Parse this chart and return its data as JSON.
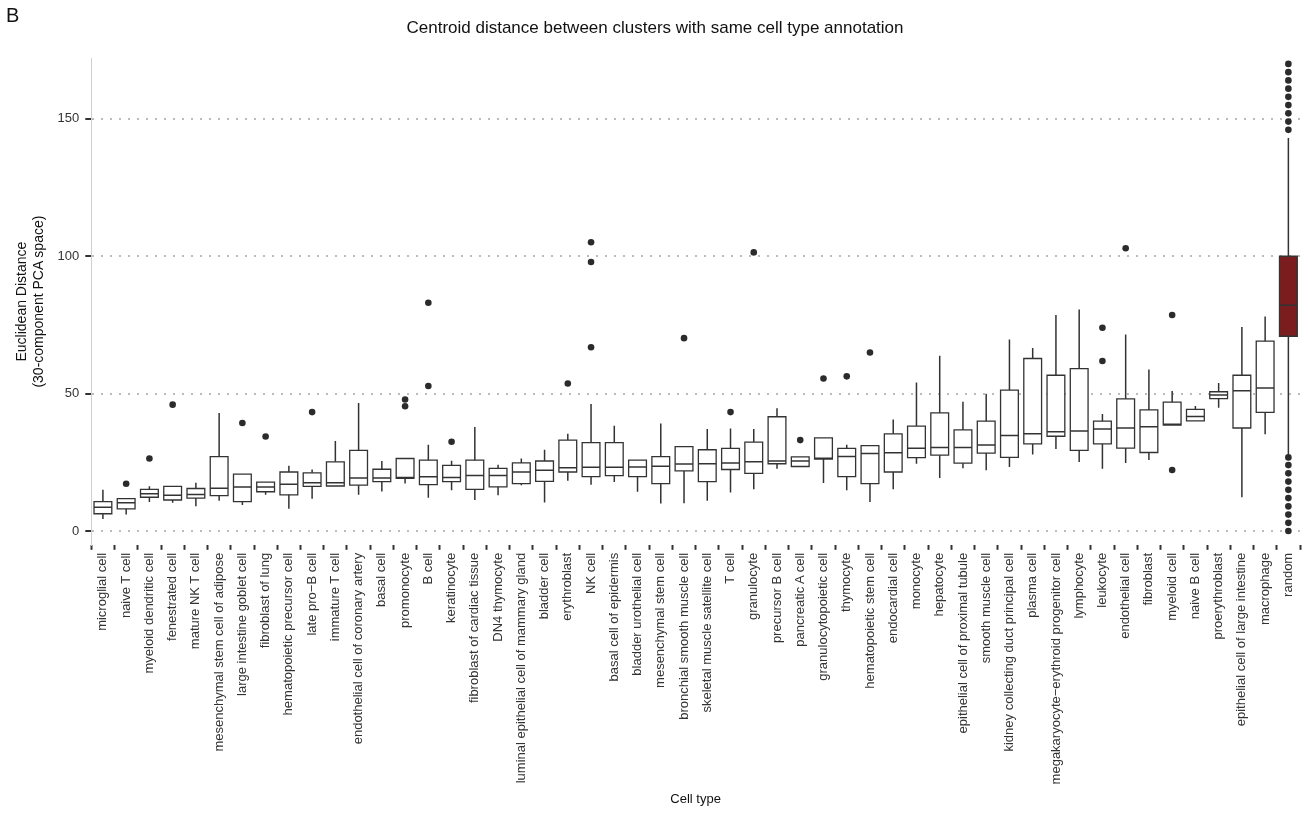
{
  "chart_data": {
    "type": "box",
    "title": "Centroid distance between clusters with same cell type annotation",
    "xlabel": "Cell type",
    "ylabel": "Euclidean Distance\n(30-component PCA space)",
    "annotations": [
      "B"
    ],
    "categories": [
      "microglial cell",
      "naive T cell",
      "myeloid dendritic cell",
      "fenestrated cell",
      "mature NK T cell",
      "mesenchymal stem cell of adipose",
      "large intestine goblet cell",
      "fibroblast of lung",
      "hematopoietic precursor cell",
      "late pro−B cell",
      "immature T cell",
      "endothelial cell of coronary artery",
      "basal cell",
      "promonocyte",
      "B cell",
      "keratinocyte",
      "fibroblast of cardiac tissue",
      "DN4 thymocyte",
      "luminal epithelial cell of mammary gland",
      "bladder cell",
      "erythroblast",
      "NK cell",
      "basal cell of epidermis",
      "bladder urothelial cell",
      "mesenchymal stem cell",
      "bronchial smooth muscle cell",
      "skeletal muscle satellite cell",
      "T cell",
      "granulocyte",
      "precursor B cell",
      "pancreatic A cell",
      "granulocytopoietic cell",
      "thymocyte",
      "hematopoietic stem cell",
      "endocardial cell",
      "monocyte",
      "hepatocyte",
      "epithelial cell of proximal tubule",
      "smooth muscle cell",
      "kidney collecting duct principal cell",
      "plasma cell",
      "megakaryocyte−erythroid progenitor cell",
      "lymphocyte",
      "leukocyte",
      "endothelial cell",
      "fibroblast",
      "myeloid cell",
      "naive B cell",
      "proerythroblast",
      "epithelial cell of large intestine",
      "macrophage",
      "random"
    ],
    "colors": [
      "#ffffff",
      "#ffffff",
      "#ffffff",
      "#ffffff",
      "#ffffff",
      "#ffffff",
      "#ffffff",
      "#ffffff",
      "#ffffff",
      "#ffffff",
      "#ffffff",
      "#ffffff",
      "#ffffff",
      "#ffffff",
      "#ffffff",
      "#ffffff",
      "#ffffff",
      "#ffffff",
      "#ffffff",
      "#ffffff",
      "#ffffff",
      "#ffffff",
      "#ffffff",
      "#ffffff",
      "#ffffff",
      "#ffffff",
      "#ffffff",
      "#ffffff",
      "#ffffff",
      "#ffffff",
      "#ffffff",
      "#ffffff",
      "#ffffff",
      "#ffffff",
      "#ffffff",
      "#ffffff",
      "#ffffff",
      "#ffffff",
      "#ffffff",
      "#ffffff",
      "#ffffff",
      "#ffffff",
      "#ffffff",
      "#ffffff",
      "#ffffff",
      "#ffffff",
      "#ffffff",
      "#ffffff",
      "#ffffff",
      "#ffffff",
      "#ffffff",
      "#7b1c1e"
    ],
    "boxes": [
      {
        "low": 4.4,
        "q1": 6.3,
        "median": 8.7,
        "q3": 10.7,
        "high": 15
      },
      {
        "low": 6,
        "q1": 8.1,
        "median": 10.3,
        "q3": 11.8,
        "high": 11.8,
        "outliers": [
          17.2
        ]
      },
      {
        "low": 10.6,
        "q1": 12.3,
        "median": 13.6,
        "q3": 15.2,
        "high": 16.3,
        "outliers": [
          26.4
        ]
      },
      {
        "low": 10.3,
        "q1": 11.3,
        "median": 13,
        "q3": 16.3,
        "high": 16.3,
        "outliers": [
          46
        ]
      },
      {
        "low": 9,
        "q1": 12,
        "median": 13.3,
        "q3": 15.5,
        "high": 17.6
      },
      {
        "low": 11,
        "q1": 12.9,
        "median": 15.6,
        "q3": 27.1,
        "high": 43
      },
      {
        "low": 9.5,
        "q1": 10.7,
        "median": 16,
        "q3": 20.7,
        "high": 20.7,
        "outliers": [
          39.3
        ]
      },
      {
        "low": 13.2,
        "q1": 14.3,
        "median": 16,
        "q3": 17.8,
        "high": 17.8,
        "outliers": [
          34.4
        ]
      },
      {
        "low": 8.1,
        "q1": 13.2,
        "median": 17,
        "q3": 21.5,
        "high": 23.8
      },
      {
        "low": 11.8,
        "q1": 16.3,
        "median": 17.6,
        "q3": 21.2,
        "high": 22.4,
        "outliers": [
          43.3
        ]
      },
      {
        "low": 16.4,
        "q1": 16.4,
        "median": 17.6,
        "q3": 25.2,
        "high": 32.8
      },
      {
        "low": 13.2,
        "q1": 16.7,
        "median": 19.3,
        "q3": 29.4,
        "high": 46.6
      },
      {
        "low": 14.4,
        "q1": 18,
        "median": 19.3,
        "q3": 22.5,
        "high": 25.5
      },
      {
        "low": 17.3,
        "q1": 19.2,
        "median": 19.5,
        "q3": 26.4,
        "high": 26.4,
        "outliers": [
          45.4,
          47.9
        ]
      },
      {
        "low": 12.1,
        "q1": 16.9,
        "median": 19.8,
        "q3": 25.8,
        "high": 31.4,
        "outliers": [
          52.8,
          83.1
        ]
      },
      {
        "low": 14.9,
        "q1": 18,
        "median": 19.5,
        "q3": 23.9,
        "high": 25.6,
        "outliers": [
          32.5
        ]
      },
      {
        "low": 11.3,
        "q1": 15.2,
        "median": 20.2,
        "q3": 25.8,
        "high": 37.9
      },
      {
        "low": 13,
        "q1": 16.1,
        "median": 20.2,
        "q3": 22.8,
        "high": 24.1
      },
      {
        "low": 16.7,
        "q1": 17.3,
        "median": 21.5,
        "q3": 24.8,
        "high": 26.4
      },
      {
        "low": 10.4,
        "q1": 18.1,
        "median": 22.1,
        "q3": 25.5,
        "high": 29.6
      },
      {
        "low": 18.3,
        "q1": 21.5,
        "median": 23,
        "q3": 33.1,
        "high": 35.4,
        "outliers": [
          53.7
        ]
      },
      {
        "low": 16.9,
        "q1": 19.8,
        "median": 23.2,
        "q3": 32.2,
        "high": 46.2,
        "outliers": [
          66.9,
          97.9,
          105.1
        ]
      },
      {
        "low": 17.9,
        "q1": 20.2,
        "median": 23.2,
        "q3": 32.2,
        "high": 38.3
      },
      {
        "low": 14.3,
        "q1": 19.8,
        "median": 23.3,
        "q3": 25.8,
        "high": 25.8
      },
      {
        "low": 10,
        "q1": 17.3,
        "median": 23.6,
        "q3": 27.1,
        "high": 39.1
      },
      {
        "low": 10.1,
        "q1": 21.9,
        "median": 24.4,
        "q3": 30.7,
        "high": 30.7,
        "outliers": [
          70.2
        ]
      },
      {
        "low": 11,
        "q1": 18,
        "median": 24.5,
        "q3": 29.6,
        "high": 37.1
      },
      {
        "low": 14,
        "q1": 22.4,
        "median": 24.8,
        "q3": 30.1,
        "high": 37.3,
        "outliers": [
          43.3
        ]
      },
      {
        "low": 15.2,
        "q1": 21,
        "median": 25.2,
        "q3": 32.4,
        "high": 37.1,
        "outliers": [
          101.4
        ]
      },
      {
        "low": 22.7,
        "q1": 24.5,
        "median": 25.5,
        "q3": 41.6,
        "high": 44.7
      },
      {
        "low": 23.5,
        "q1": 23.5,
        "median": 25.5,
        "q3": 27,
        "high": 27,
        "outliers": [
          33.1
        ]
      },
      {
        "low": 17.5,
        "q1": 26.2,
        "median": 26.5,
        "q3": 33.9,
        "high": 33.9,
        "outliers": [
          55.5
        ]
      },
      {
        "low": 14.9,
        "q1": 19.8,
        "median": 27.1,
        "q3": 30.1,
        "high": 31.4,
        "outliers": [
          56.3
        ]
      },
      {
        "low": 10.6,
        "q1": 17.3,
        "median": 28.2,
        "q3": 31.1,
        "high": 31.1,
        "outliers": [
          65
        ]
      },
      {
        "low": 15.2,
        "q1": 21.5,
        "median": 28.5,
        "q3": 35.4,
        "high": 40.6
      },
      {
        "low": 24.5,
        "q1": 26.7,
        "median": 30.1,
        "q3": 38.2,
        "high": 54.1
      },
      {
        "low": 19.3,
        "q1": 27.6,
        "median": 30.4,
        "q3": 43,
        "high": 63.8
      },
      {
        "low": 22.9,
        "q1": 24.7,
        "median": 30.4,
        "q3": 36.8,
        "high": 47.1
      },
      {
        "low": 22.1,
        "q1": 28.4,
        "median": 31.3,
        "q3": 40,
        "high": 50
      },
      {
        "low": 23.3,
        "q1": 26.8,
        "median": 34.8,
        "q3": 51.3,
        "high": 69.7
      },
      {
        "low": 27.9,
        "q1": 31.7,
        "median": 35.4,
        "q3": 62.8,
        "high": 66.6
      },
      {
        "low": 29.9,
        "q1": 34.5,
        "median": 36.1,
        "q3": 56.7,
        "high": 78.6
      },
      {
        "low": 25.1,
        "q1": 29.4,
        "median": 36.4,
        "q3": 59.1,
        "high": 80.6
      },
      {
        "low": 22.7,
        "q1": 31.7,
        "median": 37.1,
        "q3": 40,
        "high": 42.6,
        "outliers": [
          61.9,
          74
        ]
      },
      {
        "low": 24.8,
        "q1": 30.2,
        "median": 37.5,
        "q3": 48.1,
        "high": 71.5,
        "outliers": [
          102.9
        ]
      },
      {
        "low": 25.9,
        "q1": 28.6,
        "median": 38,
        "q3": 44.1,
        "high": 58.8
      },
      {
        "low": 38.6,
        "q1": 38.6,
        "median": 38.9,
        "q3": 46.9,
        "high": 51,
        "outliers": [
          22.2,
          78.6
        ]
      },
      {
        "low": 40.1,
        "q1": 40.1,
        "median": 41.7,
        "q3": 44.3,
        "high": 45.5
      },
      {
        "low": 44.9,
        "q1": 48.2,
        "median": 49.5,
        "q3": 50.7,
        "high": 53.9
      },
      {
        "low": 12.3,
        "q1": 37.5,
        "median": 51.1,
        "q3": 56.7,
        "high": 74.3
      },
      {
        "low": 35.2,
        "q1": 43.2,
        "median": 52.1,
        "q3": 69.1,
        "high": 78.1
      },
      {
        "low": 28,
        "q1": 70.9,
        "median": 82.2,
        "q3": 100,
        "high": 143,
        "outliers": [
          0,
          3,
          6,
          9,
          12,
          15,
          18,
          21,
          24,
          26.8,
          146,
          149,
          152,
          155,
          158,
          161,
          164,
          167,
          170
        ]
      }
    ],
    "ylim": [
      -5,
      172
    ],
    "yticks": [
      0,
      50,
      100,
      150
    ],
    "grid": "y",
    "legend": false
  }
}
